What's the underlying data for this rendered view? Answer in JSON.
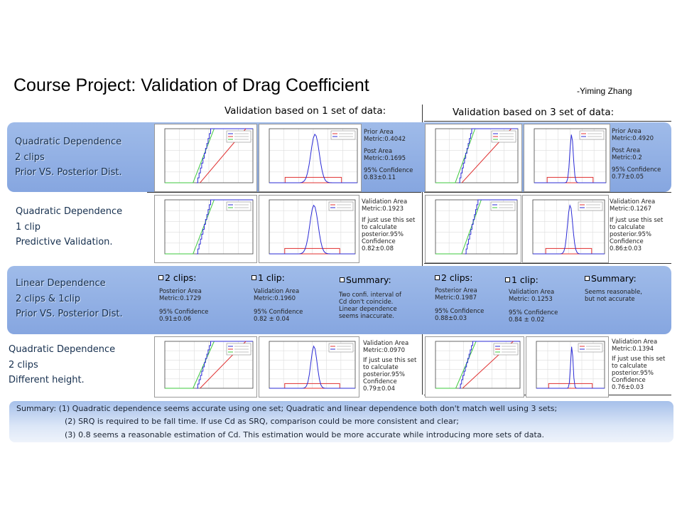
{
  "title": "Course Project: Validation of Drag Coefficient",
  "author": "-Yiming Zhang",
  "col_headers": {
    "one_set": "Validation based on 1 set of data:",
    "three_set": "Validation based on 3 set of data:"
  },
  "rows": [
    {
      "line1": "Quadratic Dependence",
      "line2": "2 clips",
      "line3": "Prior VS. Posterior Dist."
    },
    {
      "line1": "Quadratic Dependence",
      "line2": "1 clip",
      "line3": "Predictive Validation."
    },
    {
      "line1": "Linear Dependence",
      "line2": "2 clips & 1clip",
      "line3": "Prior VS. Posterior Dist."
    },
    {
      "line1": "Quadratic Dependence",
      "line2": "2 clips",
      "line3": "Different height."
    }
  ],
  "notes": {
    "r1_one": [
      "Prior Area",
      "Metric:0.4042",
      "Post Area",
      "Metric:0.1695",
      "95% Confidence",
      "0.83±0.11"
    ],
    "r1_three": [
      "Prior Area",
      "Metric:0.4920",
      "Post Area",
      "Metric:0.2",
      "95% Confidence",
      "0.77±0.05"
    ],
    "r2_one": [
      "Validation Area",
      "Metric:0.1923",
      "If just use this set",
      "to calculate",
      "posterior.95%",
      "Confidence",
      "0.82±0.08"
    ],
    "r2_three": [
      "Validation Area",
      "Metric:0.1267",
      "If just use this set",
      "to calculate",
      "posterior.95%",
      "Confidence",
      "0.86±0.03"
    ],
    "r4_one": [
      "Validation Area",
      "Metric:0.0970",
      "If just use this set",
      "to calculate",
      "posterior.95%",
      "Confidence",
      "0.79±0.04"
    ],
    "r4_three": [
      "Validation Area",
      "Metric:0.1394",
      "If just use this set",
      "to calculate",
      "posterior.95%",
      "Confidence",
      "0.76±0.03"
    ]
  },
  "linear": {
    "one": {
      "clips2_head": "2 clips:",
      "clips2": [
        "Posterior Area",
        "Metric:0.1729",
        "95% Confidence",
        "0.91±0.06"
      ],
      "clip1_head": "1 clip:",
      "clip1": [
        "Validation Area",
        "Metric:0.1960",
        "95% Confidence",
        "0.82 ± 0.04"
      ],
      "summary_head": "Summary:",
      "summary": [
        "Two confi. interval of",
        "Cd  don't coincide.",
        "Linear dependence",
        "seems inaccurate."
      ]
    },
    "three": {
      "clips2_head": "2 clips:",
      "clips2": [
        "Posterior Area",
        "Metric:0.1987",
        "95% Confidence",
        "0.88±0.03"
      ],
      "clip1_head": "1 clip:",
      "clip1": [
        "Validation Area",
        "Metric: 0.1253",
        "95% Confidence",
        "0.84 ± 0.02"
      ],
      "summary_head": "Summary:",
      "summary": [
        "Seems reasonable,",
        "but not accurate"
      ]
    }
  },
  "summary": {
    "label": "Summary:",
    "line1": "(1) Quadratic dependence seems accurate using one set; Quadratic and linear dependence both don't match well using 3 sets;",
    "line2": "(2) SRQ is required to be fall time. If use Cd as SRQ, comparison could be more consistent and clear;",
    "line3": "(3) 0.8 seems a reasonable estimation of Cd. This estimation would be more accurate while introducing more sets of data."
  },
  "colors": {
    "band": "#8fade4",
    "cdf_experimental": "#2b2bd6",
    "cdf_analytical": "#e03131",
    "cdf_posterior": "#3ec93e",
    "pdf_prior": "#e03131",
    "pdf_posterior": "#2b2bd6"
  }
}
